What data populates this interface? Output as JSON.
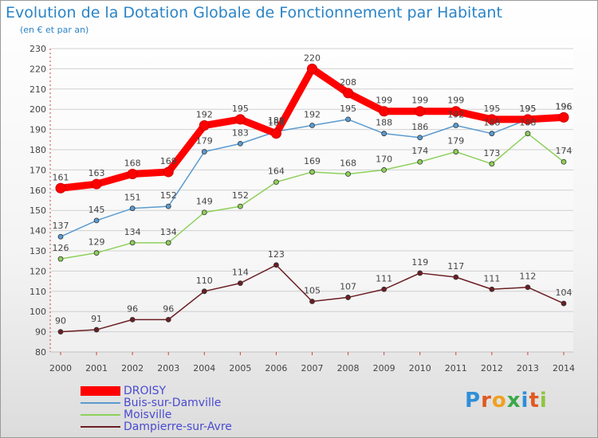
{
  "chart_data": {
    "type": "line",
    "title": "Evolution de la Dotation Globale de Fonctionnement par Habitant",
    "subtitle": "(en € et par an)",
    "categories": [
      "2000",
      "2001",
      "2002",
      "2003",
      "2004",
      "2005",
      "2006",
      "2007",
      "2008",
      "2009",
      "2010",
      "2011",
      "2012",
      "2013",
      "2014"
    ],
    "ylim": [
      80,
      230
    ],
    "yticks": [
      80,
      90,
      100,
      110,
      120,
      130,
      140,
      150,
      160,
      170,
      180,
      190,
      200,
      210,
      220,
      230
    ],
    "grid": true,
    "series": [
      {
        "name": "DROISY",
        "color": "#ff0000",
        "values": [
          161,
          163,
          168,
          169,
          192,
          195,
          188,
          220,
          208,
          199,
          199,
          199,
          195,
          195,
          196
        ]
      },
      {
        "name": "Buis-sur-Damville",
        "color": "#5b9bd0",
        "values": [
          137,
          145,
          151,
          152,
          179,
          183,
          189,
          192,
          195,
          188,
          186,
          192,
          188,
          195,
          196
        ]
      },
      {
        "name": "Moisville",
        "color": "#8ed05a",
        "values": [
          126,
          129,
          134,
          134,
          149,
          152,
          164,
          169,
          168,
          170,
          174,
          179,
          173,
          188,
          174
        ]
      },
      {
        "name": "Dampierre-sur-Avre",
        "color": "#6b1e23",
        "values": [
          90,
          91,
          96,
          96,
          110,
          114,
          123,
          105,
          107,
          111,
          119,
          117,
          111,
          112,
          104
        ]
      }
    ]
  },
  "logo": {
    "text": "Proxiti",
    "letters": [
      "P",
      "r",
      "o",
      "x",
      "i",
      "t",
      "i"
    ],
    "colors": [
      "#2f8fd8",
      "#e05a20",
      "#f0a020",
      "#3aa84a",
      "#2f8fd8",
      "#e05a20",
      "#8dc63f"
    ]
  }
}
